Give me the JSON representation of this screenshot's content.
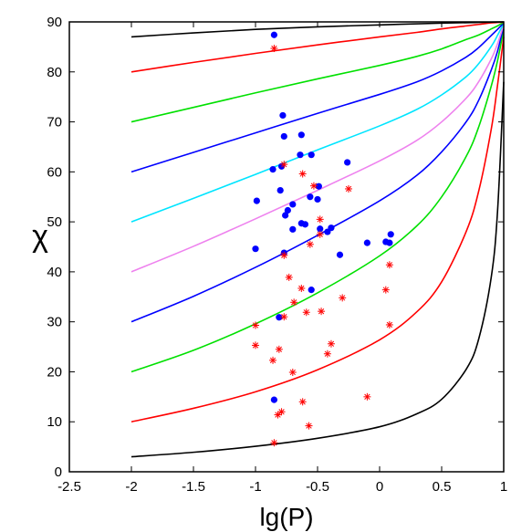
{
  "chart_data": {
    "type": "scatter",
    "xlabel": "lg(P)",
    "ylabel": "χ",
    "xlim": [
      -2.5,
      1
    ],
    "ylim": [
      0,
      90
    ],
    "x_ticks": [
      {
        "value": -2.5,
        "label": "-2.5"
      },
      {
        "value": -2,
        "label": "-2"
      },
      {
        "value": -1.5,
        "label": "-1.5"
      },
      {
        "value": -1,
        "label": "-1"
      },
      {
        "value": -0.5,
        "label": "-0.5"
      },
      {
        "value": 0,
        "label": "0"
      },
      {
        "value": 0.5,
        "label": "0.5"
      },
      {
        "value": 1,
        "label": "1"
      }
    ],
    "y_ticks": [
      {
        "value": 0,
        "label": "0"
      },
      {
        "value": 10,
        "label": "10"
      },
      {
        "value": 20,
        "label": "20"
      },
      {
        "value": 30,
        "label": "30"
      },
      {
        "value": 40,
        "label": "40"
      },
      {
        "value": 50,
        "label": "50"
      },
      {
        "value": 60,
        "label": "60"
      },
      {
        "value": 70,
        "label": "70"
      },
      {
        "value": 80,
        "label": "80"
      },
      {
        "value": 90,
        "label": "90"
      }
    ],
    "grid": false,
    "legend": "none",
    "curves": [
      {
        "color": "#000000",
        "points": [
          [
            -2,
            3
          ],
          [
            -1.5,
            3.9
          ],
          [
            -1,
            5.1
          ],
          [
            -0.5,
            6.7
          ],
          [
            0,
            9
          ],
          [
            0.3,
            11.6
          ],
          [
            0.5,
            14.5
          ],
          [
            0.7,
            20.6
          ],
          [
            0.8,
            26.7
          ],
          [
            0.9,
            39
          ],
          [
            0.95,
            52
          ],
          [
            1,
            78
          ]
        ]
      },
      {
        "color": "#ff0000",
        "points": [
          [
            -2,
            10
          ],
          [
            -1.5,
            12.7
          ],
          [
            -1,
            16
          ],
          [
            -0.5,
            20.4
          ],
          [
            0,
            26.4
          ],
          [
            0.3,
            32
          ],
          [
            0.5,
            38
          ],
          [
            0.7,
            48.2
          ],
          [
            0.8,
            56.3
          ],
          [
            0.9,
            68.6
          ],
          [
            0.95,
            77.3
          ],
          [
            1,
            87
          ]
        ]
      },
      {
        "color": "#00e000",
        "points": [
          [
            -2,
            20
          ],
          [
            -1.5,
            24.3
          ],
          [
            -1,
            29.6
          ],
          [
            -0.5,
            35.8
          ],
          [
            0,
            43.2
          ],
          [
            0.3,
            49.2
          ],
          [
            0.5,
            55
          ],
          [
            0.7,
            63.2
          ],
          [
            0.8,
            69.1
          ],
          [
            0.9,
            77.2
          ],
          [
            0.95,
            82.2
          ],
          [
            1,
            88.5
          ]
        ]
      },
      {
        "color": "#0000ff",
        "points": [
          [
            -2,
            30
          ],
          [
            -1.5,
            35.1
          ],
          [
            -1,
            40.9
          ],
          [
            -0.5,
            47.3
          ],
          [
            0,
            54.2
          ],
          [
            0.3,
            59.3
          ],
          [
            0.5,
            64
          ],
          [
            0.7,
            70.1
          ],
          [
            0.8,
            74.4
          ],
          [
            0.9,
            80.4
          ],
          [
            0.95,
            84.1
          ],
          [
            1,
            89.2
          ]
        ]
      },
      {
        "color": "#ee82ee",
        "points": [
          [
            -2,
            40
          ],
          [
            -1.5,
            45.1
          ],
          [
            -1,
            50.6
          ],
          [
            -0.5,
            56.3
          ],
          [
            0,
            62.2
          ],
          [
            0.3,
            66.3
          ],
          [
            0.5,
            70
          ],
          [
            0.7,
            74.8
          ],
          [
            0.8,
            78.1
          ],
          [
            0.9,
            82.6
          ],
          [
            0.95,
            85.6
          ],
          [
            1,
            89.5
          ]
        ]
      },
      {
        "color": "#00e5ff",
        "points": [
          [
            -2,
            50
          ],
          [
            -1.5,
            54.7
          ],
          [
            -1,
            59.5
          ],
          [
            -0.5,
            64.4
          ],
          [
            0,
            69.2
          ],
          [
            0.3,
            72.5
          ],
          [
            0.5,
            75.4
          ],
          [
            0.7,
            79.1
          ],
          [
            0.8,
            81.7
          ],
          [
            0.9,
            85.1
          ],
          [
            0.95,
            87.3
          ],
          [
            1,
            89.7
          ]
        ]
      },
      {
        "color": "#0000ff",
        "points": [
          [
            -2,
            60
          ],
          [
            -1.5,
            63.9
          ],
          [
            -1,
            67.8
          ],
          [
            -0.5,
            71.7
          ],
          [
            0,
            75.5
          ],
          [
            0.3,
            78
          ],
          [
            0.5,
            80.2
          ],
          [
            0.7,
            83
          ],
          [
            0.8,
            84.9
          ],
          [
            0.9,
            87.3
          ],
          [
            0.95,
            88.5
          ],
          [
            1,
            89.8
          ]
        ]
      },
      {
        "color": "#00e000",
        "points": [
          [
            -2,
            70
          ],
          [
            -1.5,
            72.9
          ],
          [
            -1,
            75.8
          ],
          [
            -0.5,
            78.6
          ],
          [
            0,
            81.3
          ],
          [
            0.3,
            83.1
          ],
          [
            0.5,
            84.6
          ],
          [
            0.7,
            86.5
          ],
          [
            0.8,
            87.4
          ],
          [
            0.9,
            88.6
          ],
          [
            0.95,
            89.2
          ],
          [
            1,
            89.9
          ]
        ]
      },
      {
        "color": "#ff0000",
        "points": [
          [
            -2,
            80
          ],
          [
            -1.5,
            81.9
          ],
          [
            -1,
            83.7
          ],
          [
            -0.5,
            85.4
          ],
          [
            0,
            87
          ],
          [
            0.3,
            87.9
          ],
          [
            0.5,
            88.6
          ],
          [
            0.7,
            89.2
          ],
          [
            0.8,
            89.5
          ],
          [
            0.9,
            89.8
          ],
          [
            1,
            89.95
          ]
        ]
      },
      {
        "color": "#000000",
        "points": [
          [
            -2,
            87
          ],
          [
            -1.5,
            87.8
          ],
          [
            -1,
            88.5
          ],
          [
            -0.5,
            89
          ],
          [
            0,
            89.4
          ],
          [
            0.5,
            89.75
          ],
          [
            0.8,
            89.9
          ],
          [
            1,
            90
          ]
        ]
      }
    ],
    "series": [
      {
        "marker": "circle",
        "color": "#0000ff",
        "points": [
          [
            -0.85,
            87.4
          ],
          [
            -0.78,
            71.3
          ],
          [
            -0.77,
            67.1
          ],
          [
            -0.63,
            67.4
          ],
          [
            -0.64,
            63.4
          ],
          [
            -0.55,
            63.4
          ],
          [
            -0.26,
            61.9
          ],
          [
            -0.86,
            60.5
          ],
          [
            -0.79,
            61.1
          ],
          [
            -0.8,
            56.3
          ],
          [
            -0.49,
            57.1
          ],
          [
            -0.99,
            54.2
          ],
          [
            -0.56,
            55.0
          ],
          [
            -0.5,
            54.5
          ],
          [
            -0.7,
            53.5
          ],
          [
            -0.74,
            52.3
          ],
          [
            -0.76,
            51.3
          ],
          [
            -0.63,
            49.7
          ],
          [
            -0.6,
            49.5
          ],
          [
            -0.48,
            48.6
          ],
          [
            -0.42,
            48.0
          ],
          [
            -0.39,
            48.8
          ],
          [
            -0.7,
            48.5
          ],
          [
            -0.32,
            43.4
          ],
          [
            -0.1,
            45.8
          ],
          [
            -1.0,
            44.6
          ],
          [
            -0.77,
            43.8
          ],
          [
            0.05,
            46.0
          ],
          [
            0.08,
            45.8
          ],
          [
            0.09,
            47.5
          ],
          [
            -0.55,
            36.4
          ],
          [
            -0.81,
            30.9
          ],
          [
            -0.85,
            14.4
          ]
        ]
      },
      {
        "marker": "asterisk",
        "color": "#ff0000",
        "points": [
          [
            -0.85,
            84.7
          ],
          [
            -0.77,
            61.5
          ],
          [
            -0.62,
            59.6
          ],
          [
            -0.53,
            57.2
          ],
          [
            -0.25,
            56.6
          ],
          [
            -0.48,
            50.5
          ],
          [
            -0.48,
            47.5
          ],
          [
            -0.56,
            45.5
          ],
          [
            -0.77,
            43.3
          ],
          [
            -0.73,
            38.9
          ],
          [
            0.08,
            41.4
          ],
          [
            -0.63,
            36.7
          ],
          [
            0.05,
            36.4
          ],
          [
            -0.69,
            33.9
          ],
          [
            -0.3,
            34.8
          ],
          [
            -0.59,
            31.9
          ],
          [
            -0.47,
            32.1
          ],
          [
            -0.77,
            31.0
          ],
          [
            -1.0,
            29.3
          ],
          [
            0.08,
            29.4
          ],
          [
            -0.39,
            25.6
          ],
          [
            -1.0,
            25.3
          ],
          [
            -0.81,
            24.5
          ],
          [
            -0.42,
            23.6
          ],
          [
            -0.86,
            22.3
          ],
          [
            -0.7,
            19.9
          ],
          [
            -0.62,
            14.0
          ],
          [
            -0.1,
            15.0
          ],
          [
            -0.79,
            12.0
          ],
          [
            -0.82,
            11.4
          ],
          [
            -0.57,
            9.2
          ],
          [
            -0.85,
            5.8
          ]
        ]
      }
    ]
  }
}
